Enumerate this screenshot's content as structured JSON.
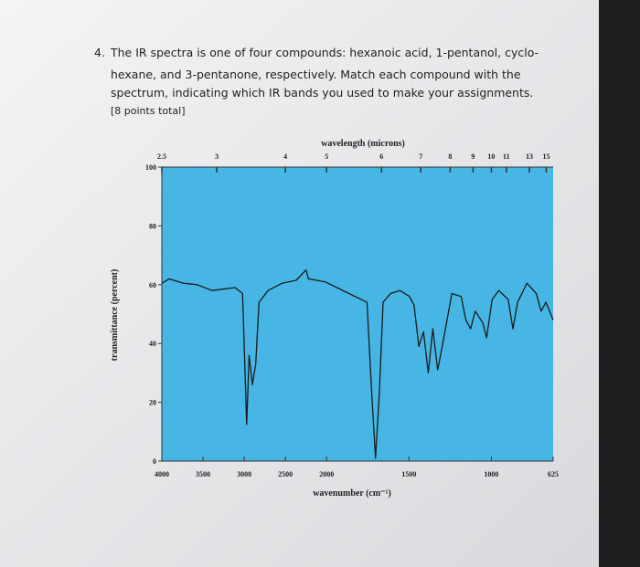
{
  "question": {
    "number": "4.",
    "lines": [
      "The IR spectra is one of four compounds: hexanoic acid, 1-pentanol, cyclo-",
      "hexane, and 3-pentanone, respectively. Match each compound with the",
      "spectrum, indicating which IR bands you used to make your assignments.",
      "[8 points total]"
    ]
  },
  "chart_data": {
    "type": "line",
    "xlabel": "wavenumber (cm⁻¹)",
    "ylabel": "transmittance (percent)",
    "x2label": "wavelength (microns)",
    "xlim": [
      4000,
      625
    ],
    "x_scale_break": {
      "value": 2000,
      "factor": 2
    },
    "xticks": [
      4000,
      3500,
      3000,
      2500,
      2000,
      1500,
      1000,
      625
    ],
    "x2ticks": [
      2.5,
      3,
      4,
      5,
      6,
      7,
      8,
      9,
      10,
      11,
      13,
      15
    ],
    "ylim": [
      0,
      100
    ],
    "yticks": [
      0,
      20,
      40,
      60,
      80,
      100
    ],
    "color": "#1a1a1a",
    "x": [
      4000,
      3910,
      3740,
      3570,
      3390,
      3110,
      3020,
      2970,
      2940,
      2900,
      2860,
      2820,
      2710,
      2540,
      2370,
      2250,
      2220,
      2020,
      1755,
      1726,
      1703,
      1680,
      1657,
      1612,
      1555,
      1497,
      1469,
      1440,
      1412,
      1383,
      1355,
      1326,
      1298,
      1240,
      1183,
      1155,
      1126,
      1098,
      1052,
      1029,
      995,
      955,
      898,
      869,
      841,
      784,
      727,
      698,
      669,
      625
    ],
    "values": [
      60.5,
      62,
      60.5,
      60,
      58,
      59,
      57,
      12.5,
      36,
      26,
      33,
      54,
      58,
      60.5,
      61.5,
      65,
      62,
      61,
      54,
      23,
      1,
      23,
      54,
      57,
      58,
      56,
      53,
      39,
      44,
      30,
      45,
      31,
      39,
      57,
      56,
      48,
      45,
      51,
      47,
      42,
      55,
      58,
      55,
      45,
      54,
      60.5,
      57,
      51,
      54,
      48
    ]
  }
}
